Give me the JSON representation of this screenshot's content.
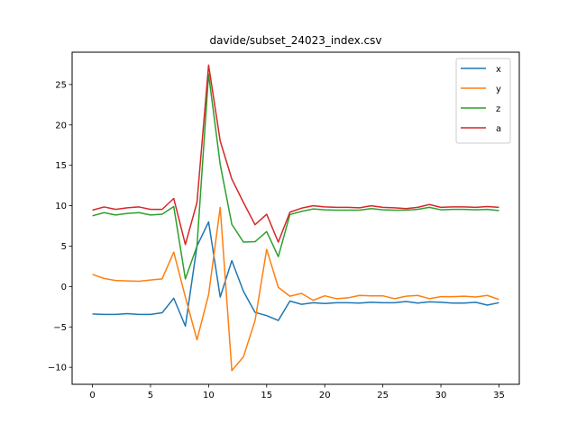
{
  "chart_data": {
    "type": "line",
    "title": "davide/subset_24023_index.csv",
    "xlabel": "",
    "ylabel": "",
    "xlim": [
      -1.75,
      36.75
    ],
    "ylim": [
      -12.1,
      29.0
    ],
    "xticks": [
      0,
      5,
      10,
      15,
      20,
      25,
      30,
      35
    ],
    "yticks": [
      -10,
      -5,
      0,
      5,
      10,
      15,
      20,
      25
    ],
    "grid": false,
    "legend_position": "top-right",
    "x": [
      0,
      1,
      2,
      3,
      4,
      5,
      6,
      7,
      8,
      9,
      10,
      11,
      12,
      13,
      14,
      15,
      16,
      17,
      18,
      19,
      20,
      21,
      22,
      23,
      24,
      25,
      26,
      27,
      28,
      29,
      30,
      31,
      32,
      33,
      34,
      35
    ],
    "series": [
      {
        "name": "x",
        "color": "#1f77b4",
        "values": [
          -3.4,
          -3.45,
          -3.45,
          -3.35,
          -3.45,
          -3.45,
          -3.25,
          -1.45,
          -4.9,
          5.0,
          8.0,
          -1.3,
          3.2,
          -0.6,
          -3.2,
          -3.6,
          -4.2,
          -1.8,
          -2.2,
          -2.0,
          -2.1,
          -2.0,
          -2.0,
          -2.05,
          -1.95,
          -2.0,
          -2.0,
          -1.85,
          -2.05,
          -1.9,
          -1.95,
          -2.05,
          -2.05,
          -1.95,
          -2.3,
          -2.0
        ]
      },
      {
        "name": "y",
        "color": "#ff7f0e",
        "values": [
          1.5,
          1.0,
          0.75,
          0.7,
          0.65,
          0.8,
          0.95,
          4.25,
          -1.3,
          -6.6,
          -1.0,
          9.8,
          -10.4,
          -8.7,
          -4.2,
          4.6,
          -0.1,
          -1.2,
          -0.85,
          -1.7,
          -1.15,
          -1.5,
          -1.4,
          -1.1,
          -1.15,
          -1.15,
          -1.5,
          -1.2,
          -1.1,
          -1.5,
          -1.25,
          -1.25,
          -1.2,
          -1.3,
          -1.1,
          -1.6
        ]
      },
      {
        "name": "z",
        "color": "#2ca02c",
        "values": [
          8.75,
          9.15,
          8.85,
          9.05,
          9.15,
          8.85,
          8.95,
          9.9,
          0.95,
          5.0,
          26.3,
          15.1,
          7.7,
          5.5,
          5.55,
          6.8,
          3.7,
          8.9,
          9.3,
          9.6,
          9.5,
          9.45,
          9.45,
          9.45,
          9.65,
          9.5,
          9.45,
          9.45,
          9.55,
          9.8,
          9.5,
          9.55,
          9.55,
          9.5,
          9.55,
          9.4
        ]
      },
      {
        "name": "a",
        "color": "#d62728",
        "values": [
          9.45,
          9.85,
          9.55,
          9.75,
          9.85,
          9.55,
          9.55,
          10.9,
          5.2,
          10.4,
          27.4,
          18.0,
          13.3,
          10.4,
          7.65,
          8.95,
          5.5,
          9.2,
          9.7,
          10.0,
          9.85,
          9.8,
          9.8,
          9.75,
          10.0,
          9.8,
          9.75,
          9.65,
          9.8,
          10.15,
          9.8,
          9.85,
          9.85,
          9.8,
          9.9,
          9.8
        ]
      }
    ]
  }
}
